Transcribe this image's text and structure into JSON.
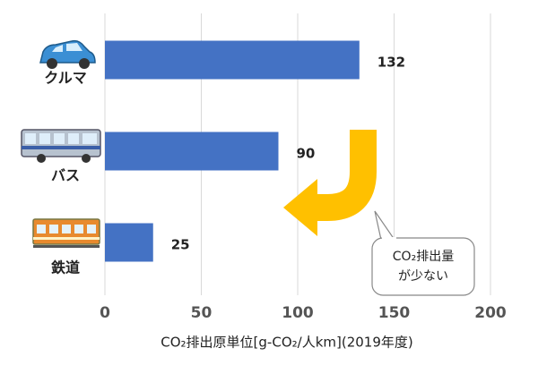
{
  "chart_data": {
    "type": "bar",
    "orientation": "horizontal",
    "categories": [
      "クルマ",
      "バス",
      "鉄道"
    ],
    "values": [
      132,
      90,
      25
    ],
    "color": "#4472c4",
    "xlim": [
      0,
      200
    ],
    "xticks": [
      0,
      50,
      100,
      150,
      200
    ],
    "grid": true,
    "x_label": "CO₂排出原単位[g-CO₂/人km](2019年度)",
    "annotation": [
      "CO₂排出量",
      "が少ない"
    ]
  }
}
